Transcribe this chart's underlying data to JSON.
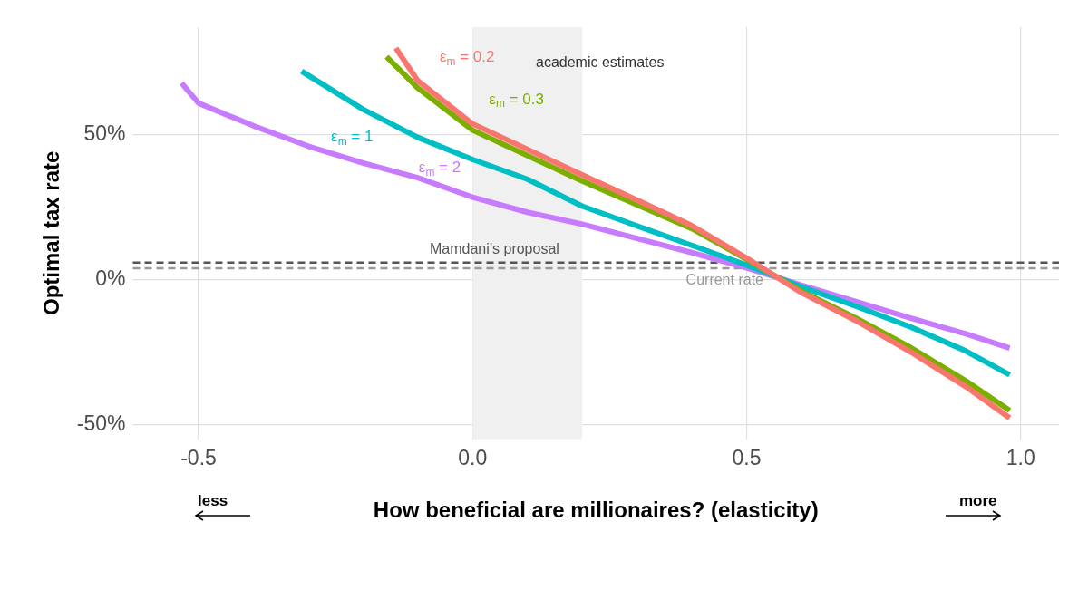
{
  "chart_data": {
    "type": "line",
    "xlabel": "How beneficial are millionaires? (elasticity)",
    "ylabel": "Optimal tax rate",
    "xlim": [
      -0.62,
      1.07
    ],
    "ylim": [
      -55,
      87
    ],
    "xticks": [
      -0.5,
      {
        "value": 0,
        "label": "0.0"
      },
      0.5,
      {
        "value": 1,
        "label": "1.0"
      }
    ],
    "yticks": [
      {
        "value": -50,
        "label": "-50%"
      },
      {
        "value": 0,
        "label": "0%"
      },
      {
        "value": 50,
        "label": "50%"
      }
    ],
    "grid": true,
    "line_style": "solid",
    "marker": "none",
    "series": [
      {
        "name": "ε$_{m}$ = 0.2",
        "color": "#f8766d",
        "x": [
          -0.14,
          -0.1,
          0,
          0.2,
          0.3,
          0.4,
          0.5,
          0.6,
          0.7,
          0.8,
          0.9,
          0.98
        ],
        "values": [
          79.8,
          68.5,
          53.7,
          36.1,
          27.4,
          18.6,
          7.4,
          -4.5,
          -14.2,
          -25,
          -36.9,
          -47.7
        ]
      },
      {
        "name": "ε$_{m}$ = 0.3",
        "color": "#7cae00",
        "x": [
          -0.157,
          -0.1,
          0,
          0.2,
          0.3,
          0.4,
          0.5,
          0.6,
          0.7,
          0.8,
          0.9,
          0.98
        ],
        "values": [
          76.8,
          66,
          51.5,
          34,
          25.8,
          17.6,
          7,
          -4,
          -13.3,
          -23.5,
          -34.9,
          -45.1
        ]
      },
      {
        "name": "ε$_{m}$ = 1",
        "color": "#00bfc4",
        "x": [
          -0.312,
          -0.2,
          -0.1,
          0,
          0.1,
          0.2,
          0.3,
          0.4,
          0.5,
          0.6,
          0.7,
          0.8,
          0.9,
          0.98
        ],
        "values": [
          71.8,
          58.7,
          49,
          41.4,
          34.6,
          25.3,
          18.5,
          11.8,
          5,
          -2.5,
          -9.2,
          -16.4,
          -24.6,
          -32.8
        ]
      },
      {
        "name": "ε$_{m}$ = 2",
        "color": "#c77cff",
        "x": [
          -0.531,
          -0.5,
          -0.4,
          -0.3,
          -0.2,
          -0.1,
          0,
          0.1,
          0.2,
          0.3,
          0.4,
          0.5,
          0.6,
          0.7,
          0.8,
          0.9,
          0.98
        ],
        "values": [
          67.7,
          60.8,
          53,
          46,
          40.2,
          35.1,
          28.4,
          23.2,
          19.1,
          14.2,
          9.3,
          4,
          -1.9,
          -7.6,
          -13.3,
          -18.7,
          -23.6
        ]
      }
    ],
    "bands": [
      {
        "axis": "x",
        "from": 0,
        "to": 0.2,
        "label": "academic estimates",
        "color": "#f0f0f0"
      }
    ],
    "ref_lines": [
      {
        "axis": "y",
        "value": 5.9,
        "label": "Mamdani’s proposal",
        "color": "#555555",
        "line_style": "dashed"
      },
      {
        "axis": "y",
        "value": 3.9,
        "label": "Current rate",
        "color": "#999999",
        "line_style": "dashed"
      }
    ],
    "annotations": [
      "less",
      "more"
    ]
  }
}
